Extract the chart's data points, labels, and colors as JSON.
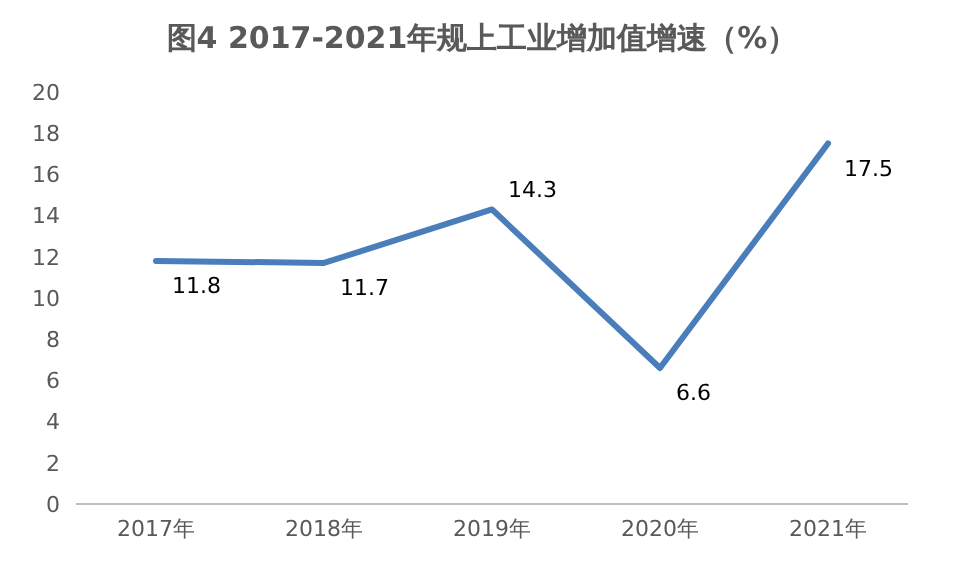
{
  "chart_data": {
    "type": "line",
    "title": "图4   2017-2021年规上工业增加值增速（%）",
    "categories": [
      "2017年",
      "2018年",
      "2019年",
      "2020年",
      "2021年"
    ],
    "series": [
      {
        "color": "#4a7ebb",
        "values": [
          11.8,
          11.7,
          14.3,
          6.6,
          17.5
        ]
      }
    ],
    "ylim": [
      0,
      20
    ],
    "yticks": [
      0,
      2,
      4,
      6,
      8,
      10,
      12,
      14,
      16,
      18,
      20
    ],
    "grid": false,
    "legend": false,
    "marker": "none",
    "line_style": "solid",
    "data_labels": true
  }
}
